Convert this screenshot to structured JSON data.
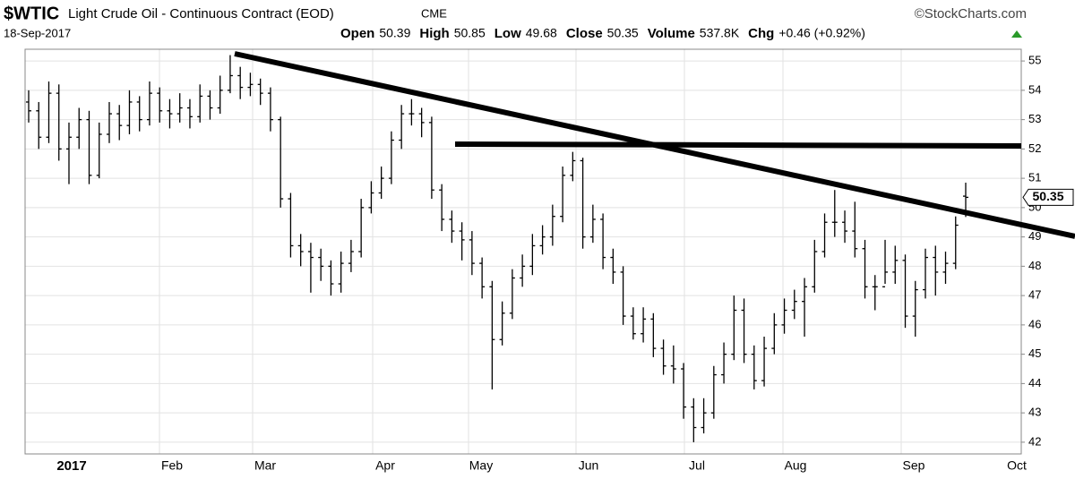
{
  "chart_data": {
    "type": "ohlc",
    "symbol": "$WTIC",
    "title": "Light Crude Oil - Continuous Contract (EOD)",
    "exchange": "CME",
    "source": "©StockCharts.com",
    "date": "18-Sep-2017",
    "stats": [
      {
        "label": "Open",
        "value": 50.39
      },
      {
        "label": "High",
        "value": 50.85
      },
      {
        "label": "Low",
        "value": 49.68
      },
      {
        "label": "Close",
        "value": 50.35
      },
      {
        "label": "Volume",
        "value": 537800,
        "value_label": "537.8K"
      },
      {
        "label": "Chg",
        "value": 0.46,
        "value_label": "+0.46 (+0.92%)"
      }
    ],
    "xlabels": [
      "2017",
      "Feb",
      "Mar",
      "Apr",
      "May",
      "Jun",
      "Jul",
      "Aug",
      "Sep",
      "Oct"
    ],
    "color": "#000000",
    "ylim": [
      41.6,
      55.4
    ],
    "yticks": [
      42,
      43,
      44,
      45,
      46,
      47,
      48,
      49,
      50,
      51,
      52,
      53,
      54,
      55
    ],
    "grid": true,
    "open": [
      53.6,
      53.3,
      52.4,
      53.9,
      52.0,
      52.4,
      53.0,
      51.1,
      52.5,
      53.2,
      52.8,
      53.6,
      53.0,
      53.9,
      53.3,
      53.2,
      53.4,
      53.1,
      53.8,
      53.4,
      54.0,
      54.5,
      54.1,
      54.2,
      53.9,
      53.0,
      50.3,
      48.7,
      48.5,
      48.3,
      48.0,
      47.4,
      48.1,
      48.5,
      50.0,
      50.5,
      51.0,
      52.3,
      53.2,
      53.2,
      52.9,
      50.6,
      49.6,
      49.2,
      48.9,
      48.1,
      47.3,
      45.5,
      46.4,
      47.6,
      48.0,
      48.7,
      49.0,
      49.7,
      51.1,
      51.6,
      49.0,
      49.6,
      48.3,
      47.8,
      46.3,
      45.7,
      46.2,
      45.2,
      44.6,
      44.5,
      43.2,
      42.5,
      43.0,
      44.3,
      45.0,
      46.5,
      45.0,
      44.1,
      45.2,
      46.0,
      46.5,
      46.8,
      47.3,
      48.5,
      49.5,
      49.5,
      49.2,
      48.6,
      47.3,
      47.3,
      47.8,
      48.2,
      46.3,
      47.2,
      48.3,
      47.8,
      48.1,
      50.39
    ],
    "high": [
      54.0,
      53.6,
      54.3,
      54.2,
      52.9,
      53.4,
      53.3,
      52.9,
      53.6,
      53.5,
      54.0,
      53.8,
      54.3,
      54.1,
      53.7,
      53.9,
      53.7,
      54.2,
      54.0,
      54.5,
      55.2,
      54.8,
      54.6,
      54.4,
      54.1,
      53.1,
      50.5,
      49.1,
      48.8,
      48.6,
      48.2,
      48.5,
      48.9,
      50.3,
      50.9,
      51.4,
      52.6,
      53.5,
      53.7,
      53.4,
      53.1,
      50.8,
      49.9,
      49.5,
      49.2,
      48.3,
      47.5,
      46.8,
      47.9,
      48.4,
      49.1,
      49.4,
      50.1,
      51.4,
      51.9,
      51.7,
      50.1,
      49.8,
      48.6,
      48.0,
      46.6,
      46.6,
      46.4,
      45.5,
      45.3,
      44.7,
      43.5,
      43.5,
      44.6,
      45.4,
      47.0,
      46.9,
      45.3,
      45.6,
      46.4,
      46.9,
      47.2,
      47.6,
      48.9,
      49.8,
      50.6,
      49.9,
      50.2,
      48.9,
      47.7,
      48.9,
      48.7,
      48.4,
      47.5,
      48.6,
      48.7,
      48.5,
      49.7,
      50.85
    ],
    "low": [
      52.9,
      52.0,
      52.2,
      51.6,
      50.8,
      52.0,
      50.8,
      51.0,
      52.2,
      52.3,
      52.5,
      52.6,
      52.8,
      52.9,
      52.7,
      52.9,
      52.7,
      52.9,
      53.0,
      53.2,
      53.9,
      53.7,
      53.8,
      53.5,
      52.6,
      50.0,
      48.3,
      48.0,
      47.1,
      47.5,
      47.0,
      47.1,
      47.8,
      48.3,
      49.8,
      50.3,
      50.8,
      52.0,
      52.8,
      52.4,
      50.3,
      49.2,
      48.8,
      48.2,
      47.7,
      46.9,
      43.8,
      45.3,
      46.2,
      47.3,
      47.7,
      48.4,
      48.7,
      49.5,
      50.9,
      48.6,
      48.8,
      47.9,
      47.4,
      46.0,
      45.5,
      45.4,
      44.9,
      44.3,
      44.0,
      42.8,
      42.0,
      42.3,
      42.8,
      44.0,
      44.8,
      44.7,
      43.8,
      43.9,
      45.0,
      45.7,
      46.2,
      45.6,
      47.1,
      48.3,
      49.0,
      48.8,
      48.3,
      46.9,
      46.5,
      47.4,
      47.4,
      45.9,
      45.6,
      46.9,
      47.0,
      47.4,
      47.9,
      49.68
    ],
    "close": [
      53.3,
      52.4,
      53.9,
      52.0,
      52.4,
      53.0,
      51.1,
      52.5,
      53.2,
      52.8,
      53.6,
      53.0,
      53.9,
      53.3,
      53.2,
      53.4,
      53.1,
      53.8,
      53.4,
      54.0,
      54.5,
      54.1,
      54.2,
      53.9,
      53.0,
      50.3,
      48.7,
      48.5,
      48.3,
      48.0,
      47.4,
      48.1,
      48.5,
      50.0,
      50.5,
      51.0,
      52.3,
      53.2,
      53.2,
      52.9,
      50.6,
      49.6,
      49.2,
      48.9,
      48.1,
      47.3,
      45.5,
      46.4,
      47.6,
      48.0,
      48.7,
      49.0,
      49.7,
      51.1,
      51.6,
      49.0,
      49.6,
      48.3,
      47.8,
      46.3,
      45.7,
      46.2,
      45.2,
      44.6,
      44.5,
      43.2,
      42.5,
      43.0,
      44.3,
      45.0,
      46.5,
      45.0,
      44.1,
      45.2,
      46.0,
      46.5,
      46.8,
      47.3,
      48.5,
      49.5,
      49.5,
      49.2,
      48.6,
      47.3,
      47.3,
      47.8,
      48.2,
      46.3,
      47.2,
      48.3,
      47.8,
      48.1,
      49.4,
      50.35
    ]
  }
}
